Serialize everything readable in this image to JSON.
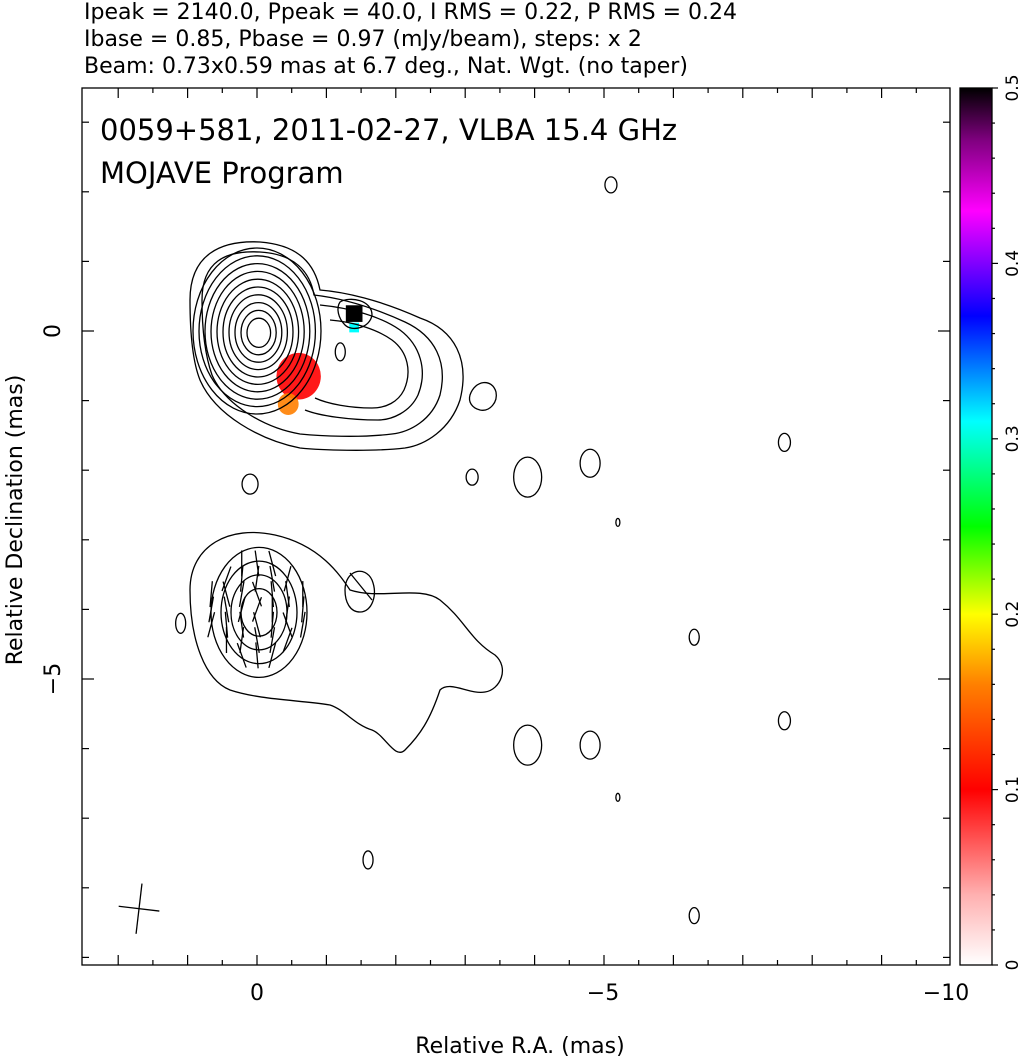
{
  "header": {
    "line1": "Ipeak = 2140.0, Ppeak = 40.0, I RMS = 0.22, P RMS = 0.24",
    "line2": "Ibase = 0.85, Pbase = 0.97 (mJy/beam), steps: x 2",
    "line3": "Beam: 0.73x0.59 mas at 6.7 deg., Nat. Wgt. (no taper)"
  },
  "plot_title": {
    "line1": "0059+581, 2011-02-27, VLBA 15.4 GHz",
    "line2": "MOJAVE Program"
  },
  "chart_data": {
    "type": "heatmap",
    "xlabel": "Relative R.A. (mas)",
    "ylabel": "Relative Declination (mas)",
    "xlim": [
      3.0,
      -10.0
    ],
    "ylim": [
      -9.0,
      3.5
    ],
    "x_ticks": [
      0,
      -5,
      -10
    ],
    "x_tick_labels": [
      "0",
      "−5",
      "−10"
    ],
    "y_ticks": [
      0,
      -5
    ],
    "y_tick_labels": [
      "0",
      "−5"
    ],
    "colorbar": {
      "range": [
        0,
        0.5
      ],
      "ticks": [
        0,
        0.1,
        0.2,
        0.3,
        0.4,
        0.5
      ],
      "tick_labels": [
        "0",
        "0.1",
        "0.2",
        "0.3",
        "0.4",
        "0.5"
      ]
    },
    "beam": {
      "major_mas": 0.73,
      "minor_mas": 0.59,
      "pa_deg": 6.7,
      "center": [
        1.7,
        -8.3
      ]
    },
    "upper_panel": {
      "core": [
        0.0,
        0.0
      ],
      "stokes_i_contours_levels": 10,
      "frac_pol_patches": [
        {
          "x": 0.1,
          "y": 0.0,
          "r": 0.85,
          "value": 0.03
        },
        {
          "x": -0.6,
          "y": -0.65,
          "r": 0.32,
          "value": 0.12
        },
        {
          "x": -0.45,
          "y": -1.05,
          "r": 0.15,
          "value": 0.18
        },
        {
          "x": -1.4,
          "y": 0.25,
          "r": 0.12,
          "value": 0.5
        },
        {
          "x": -1.4,
          "y": 0.05,
          "r": 0.07,
          "value": 0.33
        }
      ]
    },
    "lower_panel": {
      "core": [
        0.0,
        -4.0
      ],
      "polarized_intensity_contours_levels": 4,
      "evpa_vectors_deg": [
        -15,
        -10,
        -5,
        0,
        5,
        10,
        15,
        -20,
        20,
        -8,
        8
      ]
    }
  }
}
